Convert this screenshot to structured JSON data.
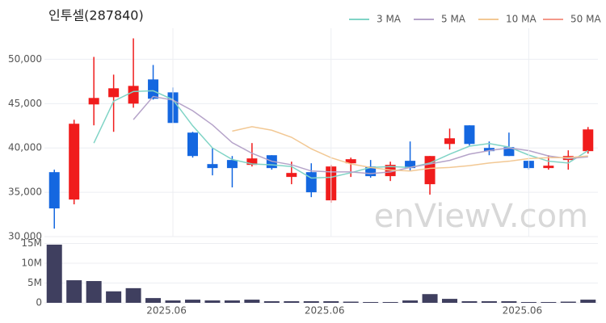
{
  "chart_data": [
    {
      "type": "candlestick",
      "title": "인투셀(287840)",
      "watermark": "enViewV.com",
      "open": [
        37270,
        34180,
        44910,
        45730,
        45000,
        47730,
        46270,
        41730,
        38180,
        38640,
        38090,
        39180,
        36730,
        37270,
        34090,
        38270,
        37910,
        36820,
        38550,
        35910,
        40450,
        42550,
        40000,
        40090,
        38550,
        37730,
        38640,
        39640
      ],
      "high": [
        37550,
        43180,
        50270,
        48270,
        52360,
        49360,
        46820,
        41820,
        40000,
        39090,
        40550,
        39180,
        38450,
        38270,
        38090,
        38910,
        38640,
        38450,
        40730,
        39090,
        42180,
        42550,
        40730,
        41730,
        38550,
        39180,
        39730,
        42360
      ],
      "low": [
        30900,
        33640,
        42550,
        41820,
        44540,
        45450,
        42820,
        38910,
        36910,
        35550,
        37910,
        37550,
        35910,
        34450,
        33820,
        36730,
        36640,
        36270,
        37360,
        34730,
        39820,
        40270,
        39180,
        39090,
        37550,
        37550,
        37550,
        39360
      ],
      "close": [
        33180,
        42730,
        45640,
        46730,
        47000,
        45550,
        42820,
        39090,
        37730,
        37730,
        38820,
        37730,
        37180,
        35000,
        37910,
        38730,
        36820,
        38090,
        37730,
        39090,
        41090,
        40450,
        39640,
        39090,
        37730,
        38000,
        39090,
        42090
      ],
      "up_color": "#f01c1c",
      "down_color": "#1467e0",
      "series": [
        {
          "name": "3 MA",
          "color": "#80d4c6",
          "values": [
            null,
            null,
            40550,
            45270,
            46360,
            46450,
            45450,
            42500,
            40000,
            38700,
            38200,
            38100,
            37900,
            36600,
            36700,
            37200,
            37800,
            37900,
            37800,
            38300,
            39300,
            40200,
            40500,
            40100,
            39200,
            38500,
            38300,
            39700
          ]
        },
        {
          "name": "5 MA",
          "color": "#b5a3c9",
          "values": [
            null,
            null,
            null,
            null,
            43200,
            45800,
            45400,
            44200,
            42600,
            40600,
            39400,
            38500,
            38100,
            37400,
            37300,
            37300,
            37100,
            37300,
            37800,
            38200,
            38600,
            39300,
            39700,
            40000,
            39700,
            39100,
            38800,
            39000
          ]
        },
        {
          "name": "10 MA",
          "color": "#f2c894",
          "values": [
            null,
            null,
            null,
            null,
            null,
            null,
            null,
            null,
            null,
            41900,
            42400,
            42000,
            41200,
            39900,
            38900,
            38200,
            37800,
            37500,
            37400,
            37700,
            37800,
            38000,
            38300,
            38500,
            38800,
            38900,
            38900,
            39100
          ]
        },
        {
          "name": "50 MA",
          "color": "#f4998a",
          "values": [
            null,
            null,
            null,
            null,
            null,
            null,
            null,
            null,
            null,
            null,
            null,
            null,
            null,
            null,
            null,
            null,
            null,
            null,
            null,
            null,
            null,
            null,
            null,
            null,
            null,
            null,
            null,
            null
          ]
        }
      ],
      "ylim": [
        30000,
        53500
      ],
      "yticks": [
        {
          "value": 30000,
          "label": "30,000"
        },
        {
          "value": 35000,
          "label": "35,000"
        },
        {
          "value": 40000,
          "label": "40,000"
        },
        {
          "value": 45000,
          "label": "45,000"
        },
        {
          "value": 50000,
          "label": "50,000"
        }
      ],
      "grid": true,
      "legend": "top-right"
    },
    {
      "type": "bar",
      "color": "#3f3f5f",
      "categories": [
        null,
        null,
        null,
        null,
        null,
        null,
        "2025.06",
        null,
        null,
        null,
        null,
        null,
        null,
        null,
        "2025.06",
        null,
        null,
        null,
        null,
        null,
        null,
        null,
        null,
        null,
        "2025.06",
        null,
        null,
        null
      ],
      "values": [
        14700000,
        5700000,
        5500000,
        2900000,
        3700000,
        1200000,
        600000,
        800000,
        600000,
        600000,
        800000,
        400000,
        400000,
        400000,
        400000,
        300000,
        200000,
        200000,
        600000,
        2200000,
        1000000,
        400000,
        400000,
        400000,
        200000,
        200000,
        300000,
        800000
      ],
      "ylim": [
        0,
        15300000
      ],
      "yticks": [
        {
          "value": 0,
          "label": "0"
        },
        {
          "value": 5000000,
          "label": "5M"
        },
        {
          "value": 10000000,
          "label": "10M"
        },
        {
          "value": 15000000,
          "label": "15M"
        }
      ],
      "grid": true
    }
  ]
}
